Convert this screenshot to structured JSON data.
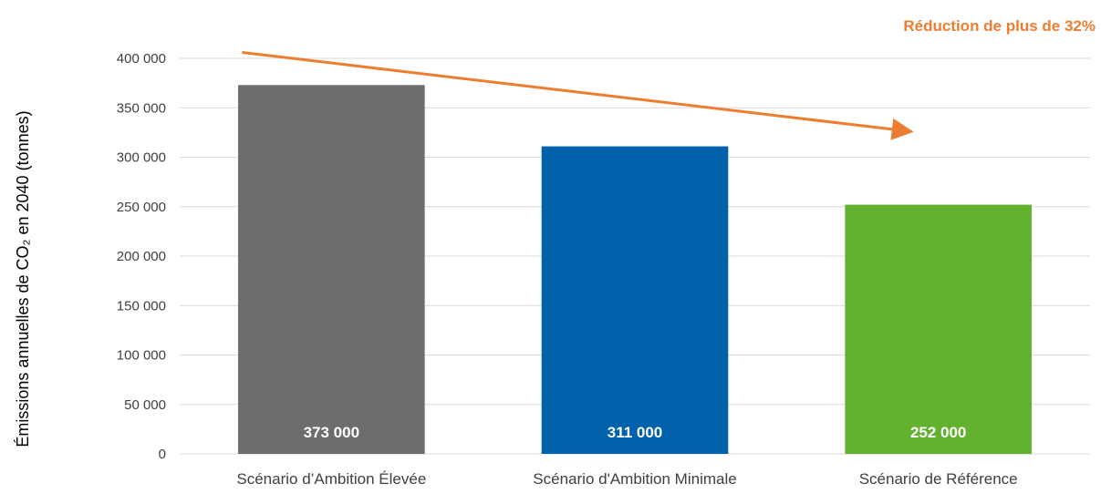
{
  "chart_data": {
    "type": "bar",
    "categories": [
      "Scénario d’Ambition Élevée",
      "Scénario d'Ambition Minimale",
      "Scénario de Référence"
    ],
    "values": [
      373000,
      311000,
      252000
    ],
    "value_labels": [
      "373 000",
      "311 000",
      "252 000"
    ],
    "colors": [
      "#6d6d6d",
      "#0062ad",
      "#62b22f"
    ],
    "ylabel": "Émissions annuelles de CO₂ en 2040 (tonnes)",
    "ylim": [
      0,
      400000
    ],
    "yticks": [
      0,
      50000,
      100000,
      150000,
      200000,
      250000,
      300000,
      350000,
      400000
    ],
    "ytick_labels": [
      "0",
      "50 000",
      "100 000",
      "150 000",
      "200 000",
      "250 000",
      "300 000",
      "350 000",
      "400 000"
    ],
    "grid": true,
    "annotation": {
      "text": "Réduction de plus de 32%",
      "color": "#ed7d31",
      "arrow_from": {
        "category_index": 0,
        "value": 406000
      },
      "arrow_to": {
        "category_index": 2,
        "value": 326000
      }
    }
  }
}
